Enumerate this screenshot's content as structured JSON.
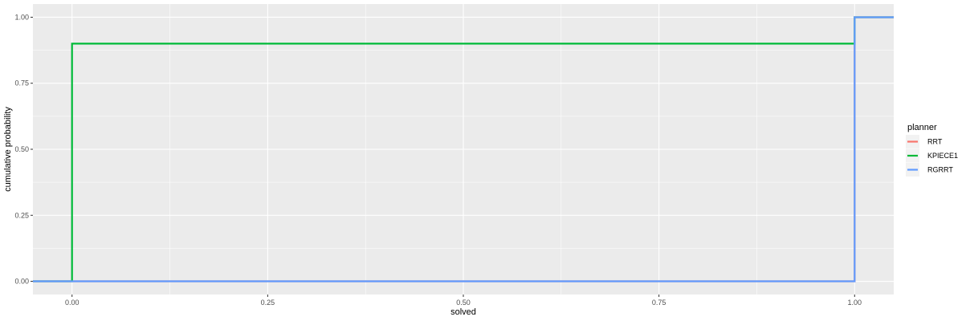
{
  "chart_data": {
    "type": "line",
    "step": true,
    "xlabel": "solved",
    "ylabel": "cumulative probability",
    "xlim": [
      -0.05,
      1.05
    ],
    "ylim": [
      -0.05,
      1.05
    ],
    "x_ticks": [
      0.0,
      0.25,
      0.5,
      0.75,
      1.0
    ],
    "x_tick_labels": [
      "0.00",
      "0.25",
      "0.50",
      "0.75",
      "1.00"
    ],
    "y_ticks": [
      0.0,
      0.25,
      0.5,
      0.75,
      1.0
    ],
    "y_tick_labels": [
      "0.00",
      "0.25",
      "0.50",
      "0.75",
      "1.00"
    ],
    "grid": true,
    "legend": {
      "title": "planner",
      "position": "right"
    },
    "series": [
      {
        "name": "RRT",
        "color": "#F8766D",
        "points": [
          [
            -0.05,
            0.0
          ],
          [
            1.0,
            0.0
          ],
          [
            1.0,
            1.0
          ],
          [
            1.05,
            1.0
          ]
        ]
      },
      {
        "name": "KPIECE1",
        "color": "#00BA38",
        "points": [
          [
            -0.05,
            0.0
          ],
          [
            0.0,
            0.0
          ],
          [
            0.0,
            0.9
          ],
          [
            1.0,
            0.9
          ],
          [
            1.0,
            1.0
          ],
          [
            1.05,
            1.0
          ]
        ]
      },
      {
        "name": "RGRRT",
        "color": "#619CFF",
        "points": [
          [
            -0.05,
            0.0
          ],
          [
            1.0,
            0.0
          ],
          [
            1.0,
            1.0
          ],
          [
            1.05,
            1.0
          ]
        ]
      }
    ]
  }
}
